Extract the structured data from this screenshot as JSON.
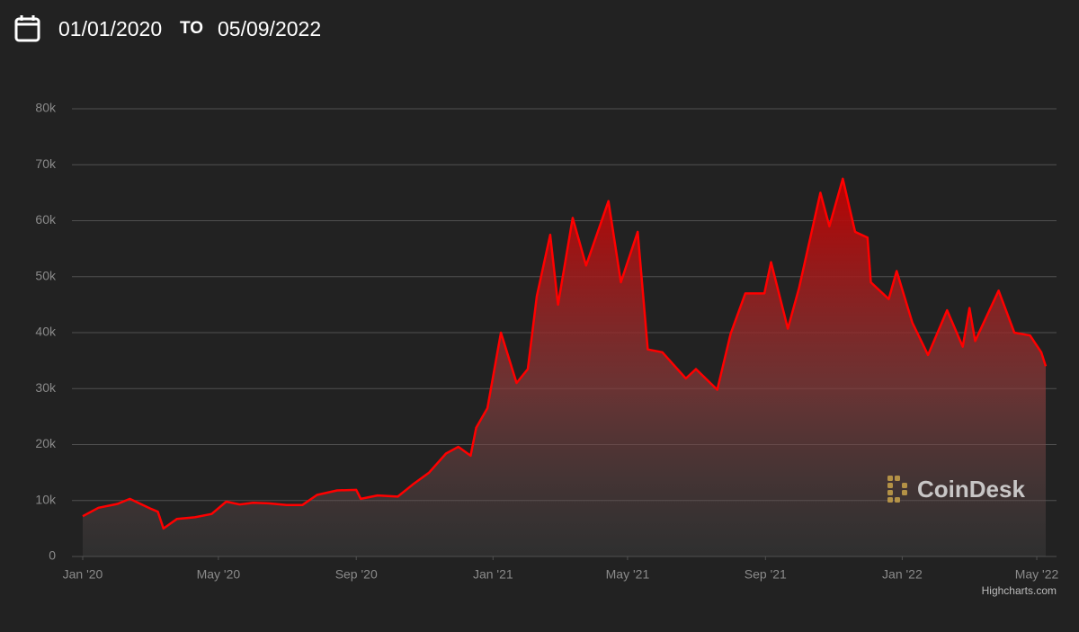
{
  "date_range": {
    "from": "01/01/2020",
    "separator": "TO",
    "to": "05/09/2022"
  },
  "chart_data": {
    "type": "area",
    "color": "#ff0000",
    "grid": true,
    "watermark": "CoinDesk",
    "credits": "Highcharts.com",
    "x": [
      "2020-01-01",
      "2020-01-15",
      "2020-02-01",
      "2020-02-12",
      "2020-03-01",
      "2020-03-08",
      "2020-03-13",
      "2020-03-25",
      "2020-04-10",
      "2020-04-25",
      "2020-05-08",
      "2020-05-20",
      "2020-06-01",
      "2020-06-15",
      "2020-07-01",
      "2020-07-15",
      "2020-07-28",
      "2020-08-15",
      "2020-09-01",
      "2020-09-05",
      "2020-09-20",
      "2020-10-08",
      "2020-10-21",
      "2020-11-05",
      "2020-11-20",
      "2020-12-01",
      "2020-12-12",
      "2020-12-17",
      "2020-12-27",
      "2021-01-08",
      "2021-01-22",
      "2021-02-01",
      "2021-02-09",
      "2021-02-21",
      "2021-02-28",
      "2021-03-13",
      "2021-03-25",
      "2021-04-14",
      "2021-04-25",
      "2021-05-10",
      "2021-05-19",
      "2021-06-01",
      "2021-06-22",
      "2021-07-01",
      "2021-07-20",
      "2021-08-01",
      "2021-08-14",
      "2021-08-31",
      "2021-09-06",
      "2021-09-21",
      "2021-10-01",
      "2021-10-20",
      "2021-10-28",
      "2021-11-09",
      "2021-11-20",
      "2021-12-01",
      "2021-12-04",
      "2021-12-20",
      "2021-12-27",
      "2022-01-10",
      "2022-01-24",
      "2022-02-10",
      "2022-02-24",
      "2022-03-02",
      "2022-03-07",
      "2022-03-28",
      "2022-04-11",
      "2022-04-25",
      "2022-05-05",
      "2022-05-09"
    ],
    "values": [
      7200,
      8700,
      9400,
      10300,
      8600,
      8000,
      5000,
      6700,
      7000,
      7600,
      9800,
      9300,
      9600,
      9500,
      9200,
      9200,
      11000,
      11800,
      11900,
      10300,
      10900,
      10700,
      12800,
      15000,
      18400,
      19600,
      18000,
      23000,
      26500,
      40000,
      31000,
      33500,
      46500,
      57500,
      45000,
      60500,
      52000,
      63500,
      49000,
      58000,
      37000,
      36500,
      31800,
      33500,
      29800,
      39800,
      47000,
      47000,
      52600,
      40700,
      48000,
      65000,
      59000,
      67500,
      58000,
      57000,
      49000,
      46000,
      51000,
      41800,
      36000,
      44000,
      37500,
      44400,
      38500,
      47500,
      40000,
      39500,
      36500,
      34000
    ],
    "xlim": [
      "2020-01-01",
      "2022-05-09"
    ],
    "xticks": [
      {
        "value": "2020-01",
        "label": "Jan '20"
      },
      {
        "value": "2020-05",
        "label": "May '20"
      },
      {
        "value": "2020-09",
        "label": "Sep '20"
      },
      {
        "value": "2021-01",
        "label": "Jan '21"
      },
      {
        "value": "2021-05",
        "label": "May '21"
      },
      {
        "value": "2021-09",
        "label": "Sep '21"
      },
      {
        "value": "2022-01",
        "label": "Jan '22"
      },
      {
        "value": "2022-05",
        "label": "May '22"
      }
    ],
    "ylim": [
      0,
      80000
    ],
    "yticks": [
      0,
      {
        "value": 10000,
        "label": "10k"
      },
      {
        "value": 20000,
        "label": "20k"
      },
      {
        "value": 30000,
        "label": "30k"
      },
      {
        "value": 40000,
        "label": "40k"
      },
      {
        "value": 50000,
        "label": "50k"
      },
      {
        "value": 60000,
        "label": "60k"
      },
      {
        "value": 70000,
        "label": "70k"
      },
      {
        "value": 80000,
        "label": "80k"
      }
    ]
  }
}
